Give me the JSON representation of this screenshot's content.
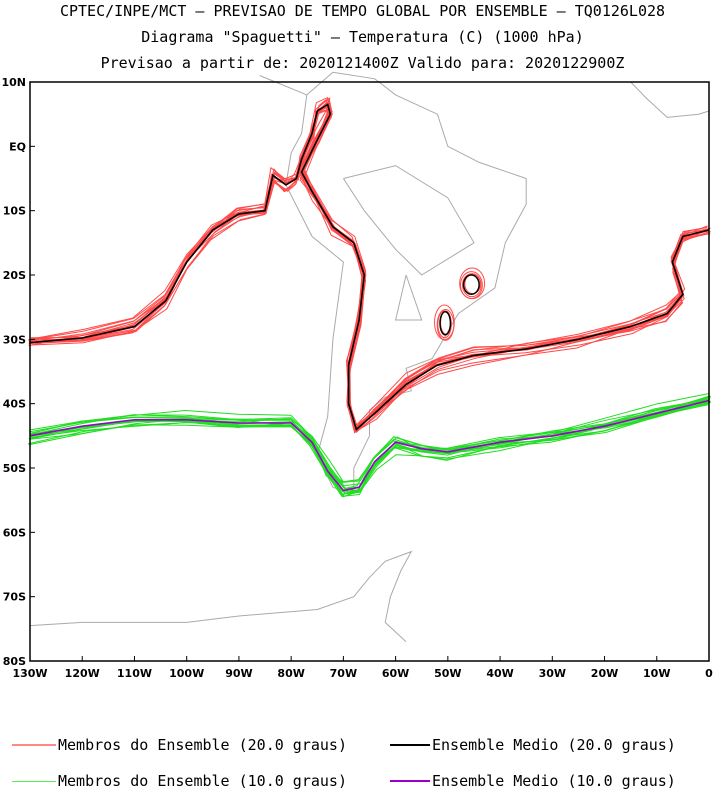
{
  "title": {
    "line1": "CPTEC/INPE/MCT – PREVISAO DE TEMPO GLOBAL POR ENSEMBLE – TQ0126L028",
    "line2": "Diagrama \"Spaguetti\" – Temperatura (C) (1000 hPa)",
    "line3": "Previsao a partir de: 2020121400Z  Valido para: 2020122900Z"
  },
  "legend": [
    {
      "label": "Membros do Ensemble (20.0 graus)",
      "color": "#ff4a4a"
    },
    {
      "label": "Ensemble Medio (20.0 graus)",
      "color": "#000000"
    },
    {
      "label": "Membros do Ensemble (10.0 graus)",
      "color": "#22dd22"
    },
    {
      "label": "Ensemble Medio (10.0 graus)",
      "color": "#9900cc"
    }
  ],
  "chart_data": {
    "type": "line",
    "xlim": [
      -130,
      0
    ],
    "ylim": [
      -80,
      10
    ],
    "x_ticks": [
      "130W",
      "120W",
      "110W",
      "100W",
      "90W",
      "80W",
      "70W",
      "60W",
      "50W",
      "40W",
      "30W",
      "20W",
      "10W",
      "0"
    ],
    "y_ticks": [
      "10N",
      "EQ",
      "10S",
      "20S",
      "30S",
      "40S",
      "50S",
      "60S",
      "70S",
      "80S"
    ],
    "members_count": 15,
    "series": [
      {
        "name": "Ensemble Medio (20.0 graus)",
        "color": "#000000",
        "points": [
          [
            -130,
            -30.5
          ],
          [
            -120,
            -29.8
          ],
          [
            -110,
            -28
          ],
          [
            -104,
            -24
          ],
          [
            -100,
            -18
          ],
          [
            -95,
            -13
          ],
          [
            -90,
            -10.5
          ],
          [
            -85,
            -10
          ],
          [
            -83.5,
            -4.5
          ],
          [
            -81,
            -6
          ],
          [
            -79,
            -5
          ],
          [
            -78,
            -2
          ],
          [
            -76,
            2
          ],
          [
            -75,
            5.5
          ],
          [
            -73,
            6.5
          ],
          [
            -72.5,
            5
          ],
          [
            -75,
            1
          ],
          [
            -78,
            -4
          ],
          [
            -76,
            -7
          ],
          [
            -72,
            -12.5
          ],
          [
            -68,
            -15
          ],
          [
            -66,
            -20
          ],
          [
            -67,
            -27
          ],
          [
            -69,
            -34
          ],
          [
            -69,
            -40
          ],
          [
            -67.5,
            -44
          ],
          [
            -64,
            -41.5
          ],
          [
            -58,
            -37
          ],
          [
            -52,
            -34
          ],
          [
            -45,
            -32.5
          ],
          [
            -35,
            -31.5
          ],
          [
            -25,
            -30
          ],
          [
            -15,
            -28
          ],
          [
            -8,
            -26
          ],
          [
            -5,
            -23
          ],
          [
            -7,
            -18
          ],
          [
            -5,
            -14
          ],
          [
            0,
            -13
          ]
        ]
      },
      {
        "name": "Ensemble Medio (10.0 graus)",
        "color": "#9900cc",
        "points": [
          [
            -130,
            -45
          ],
          [
            -120,
            -43.5
          ],
          [
            -110,
            -42.5
          ],
          [
            -100,
            -42.5
          ],
          [
            -90,
            -43
          ],
          [
            -80,
            -43
          ],
          [
            -76,
            -46
          ],
          [
            -73,
            -50.5
          ],
          [
            -70,
            -53.5
          ],
          [
            -67,
            -53
          ],
          [
            -64,
            -49
          ],
          [
            -60,
            -46
          ],
          [
            -55,
            -47
          ],
          [
            -50,
            -47.5
          ],
          [
            -40,
            -46
          ],
          [
            -30,
            -45
          ],
          [
            -20,
            -43.5
          ],
          [
            -10,
            -41.5
          ],
          [
            0,
            -39.5
          ]
        ]
      }
    ],
    "closed_contours_20": [
      {
        "center": [
          -45.5,
          -21.5
        ],
        "r": [
          1.5,
          1.5
        ]
      },
      {
        "center": [
          -50.5,
          -27.5
        ],
        "r": [
          1,
          1.8
        ]
      }
    ]
  }
}
